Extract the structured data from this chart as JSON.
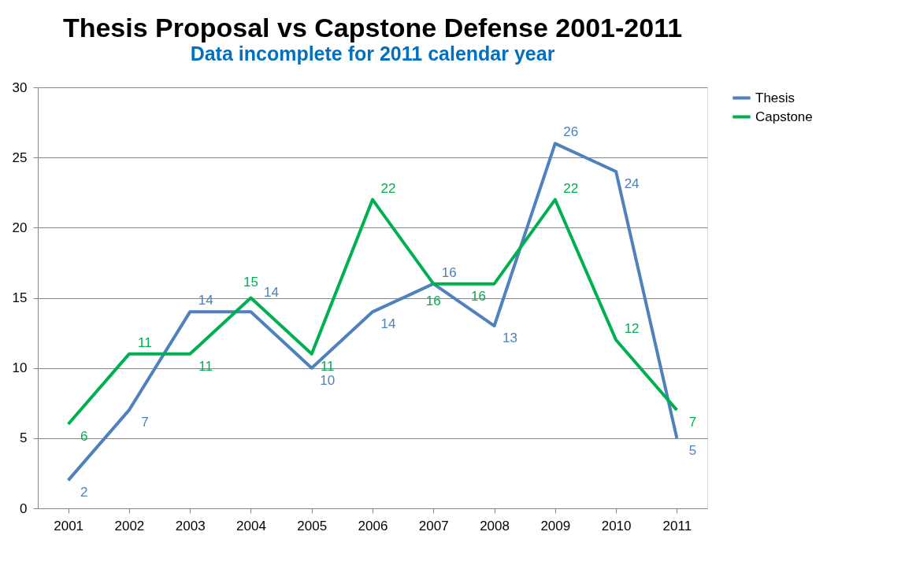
{
  "chart_data": {
    "type": "line",
    "title": "Thesis Proposal vs Capstone Defense 2001-2011",
    "subtitle": "Data incomplete for 2011 calendar year",
    "categories": [
      "2001",
      "2002",
      "2003",
      "2004",
      "2005",
      "2006",
      "2007",
      "2008",
      "2009",
      "2010",
      "2011"
    ],
    "series": [
      {
        "name": "Thesis",
        "color": "#4f81bd",
        "values": [
          2,
          7,
          14,
          14,
          10,
          14,
          16,
          13,
          26,
          24,
          5
        ]
      },
      {
        "name": "Capstone",
        "color": "#00b050",
        "values": [
          6,
          11,
          11,
          15,
          11,
          22,
          16,
          16,
          22,
          12,
          7
        ]
      }
    ],
    "ylim": [
      0,
      30
    ],
    "yticks": [
      0,
      5,
      10,
      15,
      20,
      25,
      30
    ],
    "grid": "y",
    "legend": "right",
    "data_labels": true,
    "line_style": "solid"
  }
}
